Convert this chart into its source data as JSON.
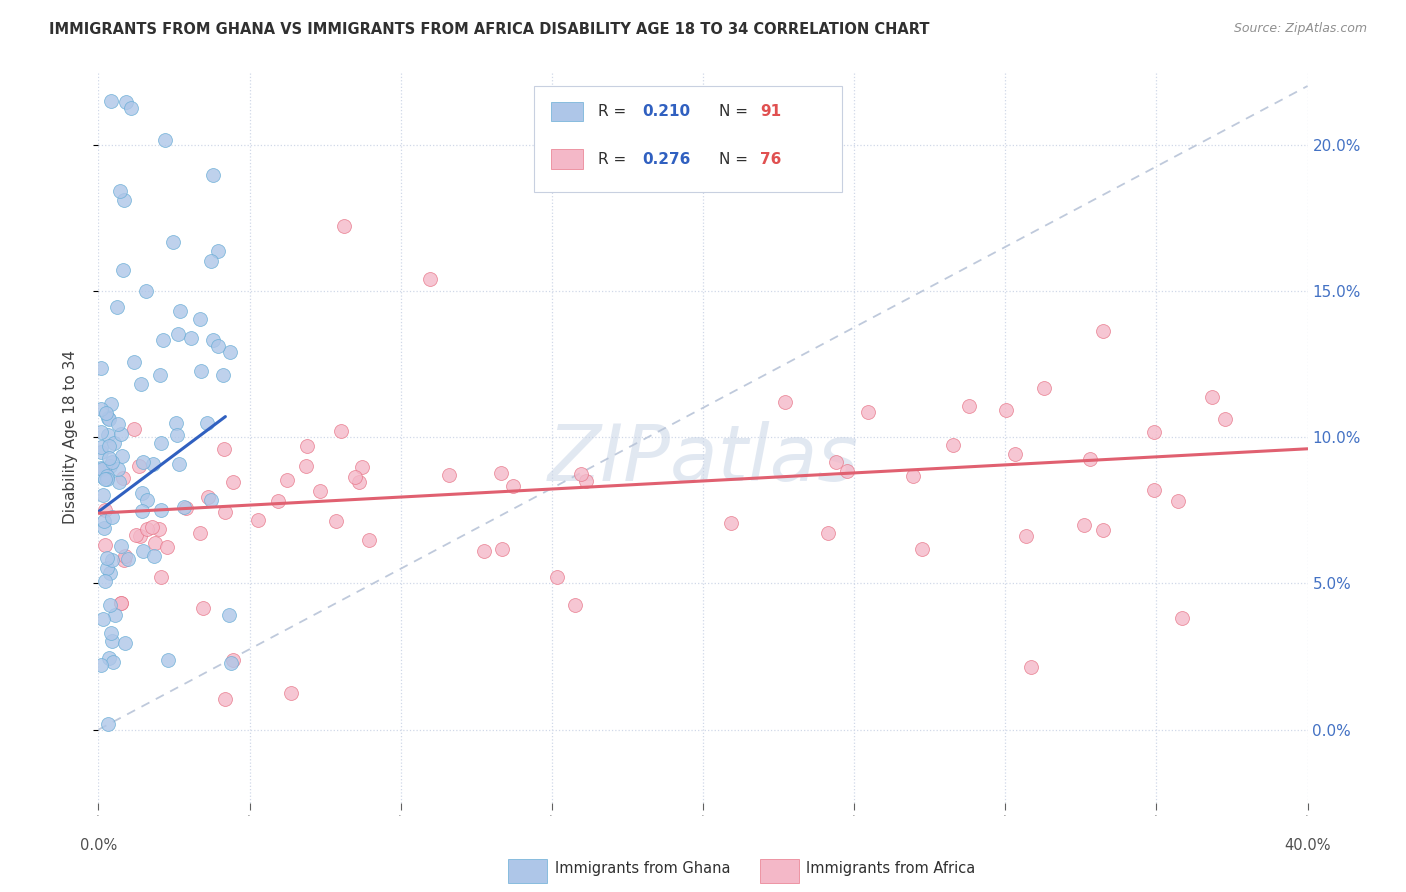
{
  "title": "IMMIGRANTS FROM GHANA VS IMMIGRANTS FROM AFRICA DISABILITY AGE 18 TO 34 CORRELATION CHART",
  "source": "Source: ZipAtlas.com",
  "ylabel": "Disability Age 18 to 34",
  "watermark": "ZIPatlas",
  "ghana_color": "#aec6e8",
  "ghana_edge": "#6aaed6",
  "africa_color": "#f4b8c8",
  "africa_edge": "#e8788a",
  "trend_ghana_color": "#3060c0",
  "trend_africa_color": "#e06070",
  "diag_color": "#b8c4d8",
  "xlim": [
    0.0,
    0.4
  ],
  "ylim": [
    -0.025,
    0.225
  ],
  "yticks": [
    0.0,
    0.05,
    0.1,
    0.15,
    0.2
  ],
  "xticks": [
    0.0,
    0.05,
    0.1,
    0.15,
    0.2,
    0.25,
    0.3,
    0.35,
    0.4
  ],
  "background_color": "#ffffff",
  "grid_color": "#d0d8e8",
  "title_color": "#303030",
  "source_color": "#909090",
  "legend_r_color": "#3060c0",
  "legend_n_color": "#e05050",
  "legend_border_color": "#c8d0e0"
}
